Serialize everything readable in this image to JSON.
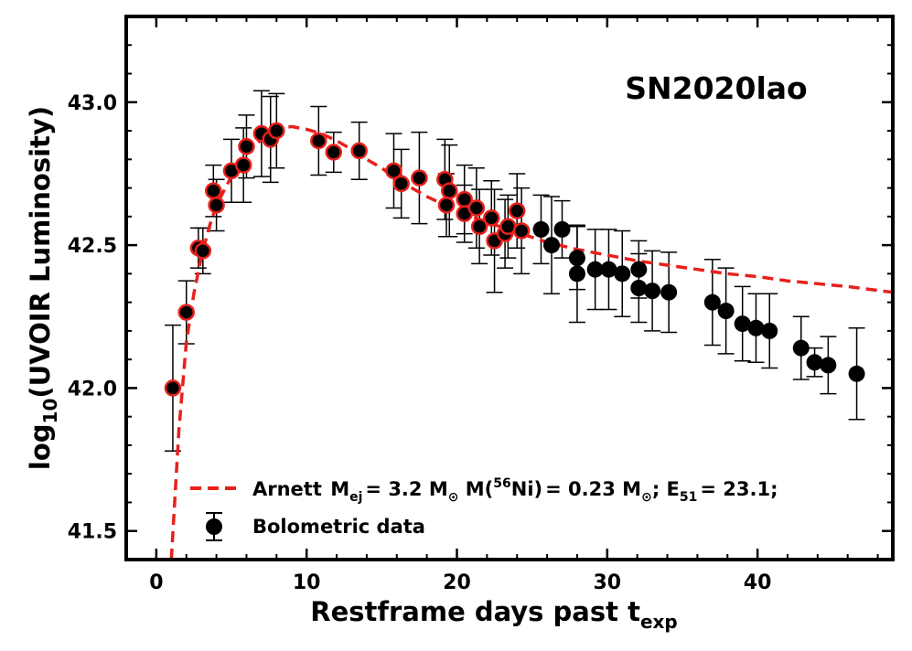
{
  "chart_data": {
    "type": "scatter",
    "title": "SN2020lao",
    "xlabel": "Restframe days past t",
    "xlabel_sub": "exp",
    "ylabel_prefix": "log",
    "ylabel_sub": "10",
    "ylabel_suffix": "(UVOIR Luminosity)",
    "xlim": [
      -2,
      49
    ],
    "ylim": [
      41.4,
      43.3
    ],
    "xticks": [
      0,
      10,
      20,
      30,
      40
    ],
    "yticks": [
      41.5,
      42.0,
      42.5,
      43.0
    ],
    "xtick_labels": [
      "0",
      "10",
      "20",
      "30",
      "40"
    ],
    "ytick_labels": [
      "41.5",
      "42.0",
      "42.5",
      "43.0"
    ],
    "model": {
      "name": "Arnett",
      "label": "Arnett M_ej = 3.2 M⊙  M(56Ni) = 0.23 M⊙;  E51 = 23.1;",
      "label_parts": {
        "prefix": "Arnett",
        "mej_value": "= 3.2",
        "ni_value": "= 0.23",
        "e51_value": "= 23.1;"
      },
      "color": "#e8201b",
      "curve": [
        [
          1.0,
          41.38
        ],
        [
          1.5,
          41.85
        ],
        [
          2.0,
          42.16
        ],
        [
          2.5,
          42.33
        ],
        [
          3.0,
          42.46
        ],
        [
          3.5,
          42.56
        ],
        [
          4.0,
          42.64
        ],
        [
          5.0,
          42.74
        ],
        [
          6.0,
          42.82
        ],
        [
          7.0,
          42.87
        ],
        [
          8.0,
          42.905
        ],
        [
          9.0,
          42.915
        ],
        [
          10.0,
          42.905
        ],
        [
          11.0,
          42.89
        ],
        [
          12.0,
          42.865
        ],
        [
          13.0,
          42.835
        ],
        [
          14.0,
          42.8
        ],
        [
          15.0,
          42.77
        ],
        [
          16.0,
          42.73
        ],
        [
          17.0,
          42.7
        ],
        [
          18.0,
          42.67
        ],
        [
          19.0,
          42.645
        ],
        [
          20.0,
          42.62
        ],
        [
          22.0,
          42.58
        ],
        [
          24.0,
          42.545
        ],
        [
          26.0,
          42.51
        ],
        [
          28.0,
          42.485
        ],
        [
          30.0,
          42.465
        ],
        [
          32.0,
          42.445
        ],
        [
          34.0,
          42.43
        ],
        [
          36.0,
          42.415
        ],
        [
          38.0,
          42.4
        ],
        [
          40.0,
          42.39
        ],
        [
          42.0,
          42.375
        ],
        [
          44.0,
          42.365
        ],
        [
          46.0,
          42.355
        ],
        [
          49.0,
          42.335
        ]
      ]
    },
    "series": [
      {
        "name": "Bolometric data",
        "color": "#000000",
        "points": [
          {
            "x": 1.1,
            "y": 42.0,
            "err": 0.22,
            "fit": true
          },
          {
            "x": 2.0,
            "y": 42.265,
            "err": 0.11,
            "fit": true
          },
          {
            "x": 2.8,
            "y": 42.49,
            "err": 0.07,
            "fit": true
          },
          {
            "x": 3.1,
            "y": 42.48,
            "err": 0.08,
            "fit": true
          },
          {
            "x": 3.8,
            "y": 42.69,
            "err": 0.09,
            "fit": true
          },
          {
            "x": 4.0,
            "y": 42.64,
            "err": 0.09,
            "fit": true
          },
          {
            "x": 5.0,
            "y": 42.76,
            "err": 0.11,
            "fit": true
          },
          {
            "x": 5.8,
            "y": 42.78,
            "err": 0.13,
            "fit": true
          },
          {
            "x": 6.0,
            "y": 42.845,
            "err": 0.11,
            "fit": true
          },
          {
            "x": 7.0,
            "y": 42.89,
            "err": 0.15,
            "fit": true
          },
          {
            "x": 7.6,
            "y": 42.87,
            "err": 0.15,
            "fit": true
          },
          {
            "x": 8.0,
            "y": 42.9,
            "err": 0.13,
            "fit": true
          },
          {
            "x": 10.8,
            "y": 42.865,
            "err": 0.12,
            "fit": true
          },
          {
            "x": 11.8,
            "y": 42.825,
            "err": 0.07,
            "fit": true
          },
          {
            "x": 13.5,
            "y": 42.83,
            "err": 0.1,
            "fit": true
          },
          {
            "x": 15.8,
            "y": 42.76,
            "err": 0.13,
            "fit": true
          },
          {
            "x": 16.3,
            "y": 42.715,
            "err": 0.12,
            "fit": true
          },
          {
            "x": 17.5,
            "y": 42.735,
            "err": 0.16,
            "fit": true
          },
          {
            "x": 19.2,
            "y": 42.73,
            "err": 0.14,
            "fit": true
          },
          {
            "x": 19.3,
            "y": 42.64,
            "err": 0.11,
            "fit": true
          },
          {
            "x": 19.5,
            "y": 42.69,
            "err": 0.16,
            "fit": true
          },
          {
            "x": 20.5,
            "y": 42.66,
            "err": 0.12,
            "fit": true
          },
          {
            "x": 20.5,
            "y": 42.61,
            "err": 0.1,
            "fit": true
          },
          {
            "x": 21.3,
            "y": 42.63,
            "err": 0.14,
            "fit": true
          },
          {
            "x": 21.5,
            "y": 42.565,
            "err": 0.13,
            "fit": true
          },
          {
            "x": 22.3,
            "y": 42.595,
            "err": 0.13,
            "fit": true
          },
          {
            "x": 22.5,
            "y": 42.515,
            "err": 0.18,
            "fit": true
          },
          {
            "x": 23.2,
            "y": 42.54,
            "err": 0.12,
            "fit": true
          },
          {
            "x": 23.4,
            "y": 42.565,
            "err": 0.11,
            "fit": true
          },
          {
            "x": 24.0,
            "y": 42.62,
            "err": 0.13,
            "fit": true
          },
          {
            "x": 24.3,
            "y": 42.55,
            "err": 0.15,
            "fit": true
          },
          {
            "x": 25.6,
            "y": 42.555,
            "err": 0.12,
            "fit": false
          },
          {
            "x": 26.3,
            "y": 42.5,
            "err": 0.17,
            "fit": false
          },
          {
            "x": 27.0,
            "y": 42.555,
            "err": 0.1,
            "fit": false
          },
          {
            "x": 28.0,
            "y": 42.455,
            "err": 0.11,
            "fit": false
          },
          {
            "x": 28.0,
            "y": 42.4,
            "err": 0.17,
            "fit": false
          },
          {
            "x": 29.2,
            "y": 42.415,
            "err": 0.14,
            "fit": false
          },
          {
            "x": 30.1,
            "y": 42.415,
            "err": 0.14,
            "fit": false
          },
          {
            "x": 31.0,
            "y": 42.4,
            "err": 0.15,
            "fit": false
          },
          {
            "x": 32.1,
            "y": 42.415,
            "err": 0.1,
            "fit": false
          },
          {
            "x": 32.1,
            "y": 42.35,
            "err": 0.12,
            "fit": false
          },
          {
            "x": 33.0,
            "y": 42.34,
            "err": 0.14,
            "fit": false
          },
          {
            "x": 34.1,
            "y": 42.335,
            "err": 0.14,
            "fit": false
          },
          {
            "x": 37.0,
            "y": 42.3,
            "err": 0.15,
            "fit": false
          },
          {
            "x": 37.9,
            "y": 42.27,
            "err": 0.15,
            "fit": false
          },
          {
            "x": 39.0,
            "y": 42.225,
            "err": 0.13,
            "fit": false
          },
          {
            "x": 39.9,
            "y": 42.21,
            "err": 0.12,
            "fit": false
          },
          {
            "x": 40.8,
            "y": 42.2,
            "err": 0.13,
            "fit": false
          },
          {
            "x": 42.9,
            "y": 42.14,
            "err": 0.11,
            "fit": false
          },
          {
            "x": 43.8,
            "y": 42.09,
            "err": 0.05,
            "fit": false
          },
          {
            "x": 44.7,
            "y": 42.08,
            "err": 0.1,
            "fit": false
          },
          {
            "x": 46.6,
            "y": 42.05,
            "err": 0.16,
            "fit": false
          }
        ]
      }
    ],
    "legend": {
      "placement": "lower-center",
      "model_label": "Arnett",
      "data_label": "Bolometric data"
    },
    "annotation": "SN2020lao",
    "grid": false
  }
}
